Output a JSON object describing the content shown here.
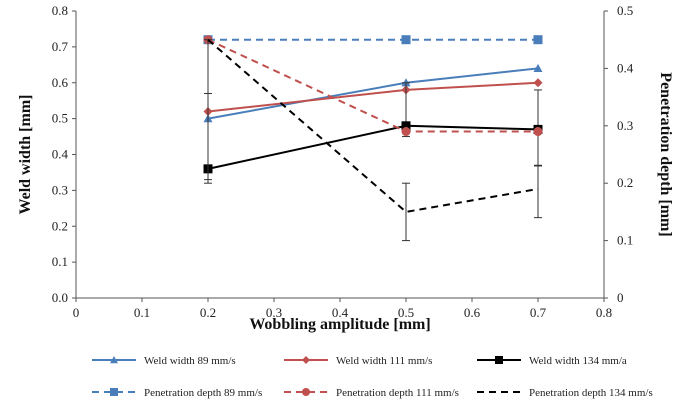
{
  "chart_data": {
    "type": "line",
    "xlabel": "Wobbling amplitude [mm]",
    "ylabel": "Weld width [mm]",
    "y2label": "Penetration depth [mm]",
    "xlim": [
      0,
      0.8
    ],
    "ylim": [
      0,
      0.8
    ],
    "y2lim": [
      0,
      0.5
    ],
    "x_ticks": [
      "0",
      "0.1",
      "0.2",
      "0.3",
      "0.4",
      "0.5",
      "0.6",
      "0.7",
      "0.8"
    ],
    "y_ticks": [
      "0.0",
      "0.1",
      "0.2",
      "0.3",
      "0.4",
      "0.5",
      "0.6",
      "0.7",
      "0.8"
    ],
    "y2_ticks": [
      "0",
      "0.1",
      "0.2",
      "0.3",
      "0.4",
      "0.5"
    ],
    "grid": false,
    "legend_position": "bottom",
    "x": [
      0.2,
      0.5,
      0.7
    ],
    "series": [
      {
        "name": "Weld width 89 mm/s",
        "axis": "left",
        "values": [
          0.5,
          0.6,
          0.64
        ],
        "color": "#4a7ebb",
        "dash": false,
        "marker": "triangle"
      },
      {
        "name": "Weld width 111 mm/s",
        "axis": "left",
        "values": [
          0.52,
          0.58,
          0.6
        ],
        "color": "#c0504d",
        "dash": false,
        "marker": "diamond"
      },
      {
        "name": "Weld width 134 mm/a",
        "axis": "left",
        "values": [
          0.36,
          0.48,
          0.47
        ],
        "color": "#000000",
        "dash": false,
        "marker": "square",
        "error": [
          [
            0.33,
            0.57
          ],
          [
            0.45,
            0.6
          ],
          [
            0.37,
            0.58
          ]
        ]
      },
      {
        "name": "Penetration depth 89 mm/s",
        "axis": "right",
        "values": [
          0.45,
          0.45,
          0.45
        ],
        "color": "#4a7ebb",
        "dash": true,
        "marker": "square"
      },
      {
        "name": "Penetration depth 111 mm/s",
        "axis": "right",
        "values": [
          0.45,
          0.29,
          0.29
        ],
        "color": "#c0504d",
        "dash": true,
        "marker": "circle"
      },
      {
        "name": "Penetration depth 134 mm/s",
        "axis": "right",
        "values": [
          0.45,
          0.15,
          0.19
        ],
        "color": "#000000",
        "dash": true,
        "marker": "none",
        "error": [
          [
            0.2,
            0.45
          ],
          [
            0.1,
            0.2
          ],
          [
            0.14,
            0.23
          ]
        ]
      }
    ]
  }
}
